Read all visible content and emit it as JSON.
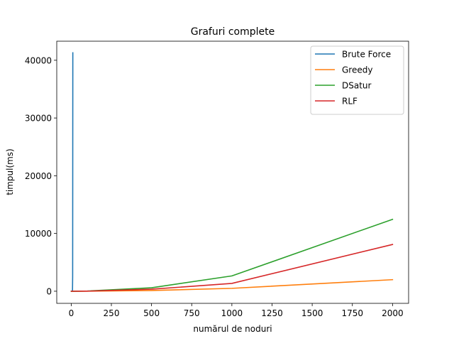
{
  "chart_data": {
    "type": "line",
    "title": "Grafuri complete",
    "xlabel": "numărul de noduri",
    "ylabel": "timpul(ms)",
    "xlim": [
      -90,
      2100
    ],
    "ylim": [
      -2100,
      43300
    ],
    "xticks": [
      0,
      250,
      500,
      750,
      1000,
      1250,
      1500,
      1750,
      2000
    ],
    "yticks": [
      0,
      10000,
      20000,
      30000,
      40000
    ],
    "grid": false,
    "legend_position": "top-right",
    "series": [
      {
        "name": "Brute Force",
        "color": "#1f77b4",
        "x": [
          1,
          2,
          3,
          4,
          5,
          6,
          7,
          8,
          9,
          10
        ],
        "y": [
          0,
          0,
          0,
          0,
          0,
          1,
          10,
          150,
          2600,
          41300
        ]
      },
      {
        "name": "Greedy",
        "color": "#ff7f0e",
        "x": [
          1,
          10,
          100,
          500,
          1000,
          2000
        ],
        "y": [
          0,
          0,
          10,
          120,
          500,
          2000
        ]
      },
      {
        "name": "DSatur",
        "color": "#2ca02c",
        "x": [
          1,
          10,
          100,
          500,
          1000,
          2000
        ],
        "y": [
          0,
          0,
          30,
          600,
          2650,
          12450
        ]
      },
      {
        "name": "RLF",
        "color": "#d62728",
        "x": [
          1,
          10,
          100,
          500,
          1000,
          2000
        ],
        "y": [
          0,
          0,
          20,
          350,
          1350,
          8100
        ]
      }
    ]
  }
}
